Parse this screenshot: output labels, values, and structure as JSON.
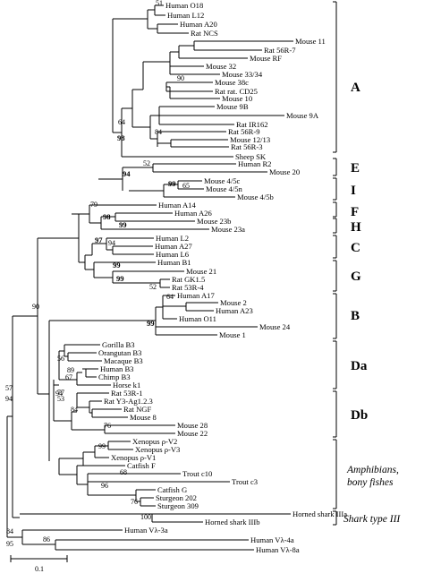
{
  "taxa": [
    {
      "key": "h_o18",
      "label": "Human O18"
    },
    {
      "key": "h_l12",
      "label": "Human L12"
    },
    {
      "key": "h_a20",
      "label": "Human A20"
    },
    {
      "key": "rat_ncs",
      "label": "Rat NCS"
    },
    {
      "key": "m_11",
      "label": "Mouse 11"
    },
    {
      "key": "rat_56r7",
      "label": "Rat 56R-7"
    },
    {
      "key": "m_rf",
      "label": "Mouse RF"
    },
    {
      "key": "m_32",
      "label": "Mouse 32"
    },
    {
      "key": "m_3334",
      "label": "Mouse 33/34"
    },
    {
      "key": "m_38c",
      "label": "Mouse 38c"
    },
    {
      "key": "rat_cd25",
      "label": "Rat rat. CD25"
    },
    {
      "key": "m_10",
      "label": "Mouse 10"
    },
    {
      "key": "m_9b",
      "label": "Mouse 9B"
    },
    {
      "key": "m_9a",
      "label": "Mouse 9A"
    },
    {
      "key": "rat_ir162",
      "label": "Rat IR162"
    },
    {
      "key": "rat_56r9",
      "label": "Rat 56R-9"
    },
    {
      "key": "m_1213",
      "label": "Mouse 12/13"
    },
    {
      "key": "rat_56r3",
      "label": "Rat 56R-3"
    },
    {
      "key": "sheep_sk",
      "label": "Sheep SK"
    },
    {
      "key": "h_r2",
      "label": "Human R2"
    },
    {
      "key": "m_20",
      "label": "Mouse 20"
    },
    {
      "key": "m_45c",
      "label": "Mouse 4/5c"
    },
    {
      "key": "m_45n",
      "label": "Mouse 4/5n"
    },
    {
      "key": "m_45b",
      "label": "Mouse 4/5b"
    },
    {
      "key": "h_a14",
      "label": "Human A14"
    },
    {
      "key": "h_a26",
      "label": "Human A26"
    },
    {
      "key": "m_23b",
      "label": "Mouse 23b"
    },
    {
      "key": "m_23a",
      "label": "Mouse 23a"
    },
    {
      "key": "h_l2",
      "label": "Human L2"
    },
    {
      "key": "h_a27",
      "label": "Human A27"
    },
    {
      "key": "h_l6",
      "label": "Human L6"
    },
    {
      "key": "h_b1",
      "label": "Human B1"
    },
    {
      "key": "m_21",
      "label": "Mouse 21"
    },
    {
      "key": "rat_gk15",
      "label": "Rat GK1.5"
    },
    {
      "key": "rat_53r4",
      "label": "Rat 53R-4"
    },
    {
      "key": "h_a17",
      "label": "Human A17"
    },
    {
      "key": "m_2",
      "label": "Mouse 2"
    },
    {
      "key": "h_a23",
      "label": "Human A23"
    },
    {
      "key": "h_o11",
      "label": "Human O11"
    },
    {
      "key": "m_24",
      "label": "Mouse 24"
    },
    {
      "key": "m_1",
      "label": "Mouse 1"
    },
    {
      "key": "gor_b3",
      "label": "Gorilla B3"
    },
    {
      "key": "ora_b3",
      "label": "Orangutan B3"
    },
    {
      "key": "mac_b3",
      "label": "Macaque B3"
    },
    {
      "key": "h_b3",
      "label": "Human B3"
    },
    {
      "key": "chimp_b3",
      "label": "Chimp B3"
    },
    {
      "key": "horse_k1",
      "label": "Horse k1"
    },
    {
      "key": "rat_53r1",
      "label": "Rat 53R-1"
    },
    {
      "key": "rat_y3",
      "label": "Rat Y3-Ag1.2.3"
    },
    {
      "key": "rat_ngf",
      "label": "Rat NGF"
    },
    {
      "key": "m_8",
      "label": "Mouse 8"
    },
    {
      "key": "m_28",
      "label": "Mouse 28"
    },
    {
      "key": "m_22",
      "label": "Mouse 22"
    },
    {
      "key": "xen_v2",
      "label": "Xenopus ρ-V2"
    },
    {
      "key": "xen_v3",
      "label": "Xenopus ρ-V3"
    },
    {
      "key": "xen_v1",
      "label": "Xenopus ρ-V1"
    },
    {
      "key": "cat_f",
      "label": "Catfish F"
    },
    {
      "key": "trout_c10",
      "label": "Trout c10"
    },
    {
      "key": "trout_c3",
      "label": "Trout c3"
    },
    {
      "key": "cat_g",
      "label": "Catfish G"
    },
    {
      "key": "stur_202",
      "label": "Sturgeon 202"
    },
    {
      "key": "stur_309",
      "label": "Sturgeon 309"
    },
    {
      "key": "shark_3a",
      "label": "Horned shark IIIa"
    },
    {
      "key": "shark_3b",
      "label": "Horned shark IIIb"
    },
    {
      "key": "hvl3a",
      "label": "Human Vλ-3a"
    },
    {
      "key": "hvl4a",
      "label": "Human Vλ-4a"
    },
    {
      "key": "hvl8a",
      "label": "Human Vλ-8a"
    }
  ],
  "bootstrap": [
    {
      "key": "b51",
      "value": "51"
    },
    {
      "key": "b90a",
      "value": "90"
    },
    {
      "key": "b64a",
      "value": "64"
    },
    {
      "key": "b98a",
      "value": "98",
      "bold": true
    },
    {
      "key": "b84a",
      "value": "84"
    },
    {
      "key": "b52a",
      "value": "52"
    },
    {
      "key": "b94a",
      "value": "94",
      "bold": true
    },
    {
      "key": "b99a",
      "value": "99",
      "bold": true
    },
    {
      "key": "b65",
      "value": "65"
    },
    {
      "key": "b79",
      "value": "79"
    },
    {
      "key": "b98b",
      "value": "98",
      "bold": true
    },
    {
      "key": "b99b",
      "value": "99",
      "bold": true
    },
    {
      "key": "b97",
      "value": "97",
      "bold": true
    },
    {
      "key": "b94b",
      "value": "94"
    },
    {
      "key": "b99c",
      "value": "99",
      "bold": true
    },
    {
      "key": "b99d",
      "value": "99",
      "bold": true
    },
    {
      "key": "b52b",
      "value": "52"
    },
    {
      "key": "b64b",
      "value": "64"
    },
    {
      "key": "b99e",
      "value": "99",
      "bold": true
    },
    {
      "key": "b90b",
      "value": "90"
    },
    {
      "key": "b56",
      "value": "56"
    },
    {
      "key": "b89",
      "value": "89"
    },
    {
      "key": "b67",
      "value": "67"
    },
    {
      "key": "b77",
      "value": "77"
    },
    {
      "key": "b57",
      "value": "57"
    },
    {
      "key": "b94c",
      "value": "94"
    },
    {
      "key": "b94d",
      "value": "94"
    },
    {
      "key": "b53",
      "value": "53"
    },
    {
      "key": "b84b",
      "value": "84"
    },
    {
      "key": "b76a",
      "value": "76"
    },
    {
      "key": "b99f",
      "value": "99"
    },
    {
      "key": "b68",
      "value": "68"
    },
    {
      "key": "b96",
      "value": "96"
    },
    {
      "key": "b76b",
      "value": "76"
    },
    {
      "key": "b100",
      "value": "100"
    },
    {
      "key": "b84c",
      "value": "84"
    },
    {
      "key": "b95",
      "value": "95"
    },
    {
      "key": "b86",
      "value": "86"
    }
  ],
  "groups": [
    {
      "key": "A",
      "label": "A"
    },
    {
      "key": "E",
      "label": "E"
    },
    {
      "key": "I",
      "label": "I"
    },
    {
      "key": "F",
      "label": "F"
    },
    {
      "key": "H",
      "label": "H"
    },
    {
      "key": "C",
      "label": "C"
    },
    {
      "key": "G",
      "label": "G"
    },
    {
      "key": "B",
      "label": "B"
    },
    {
      "key": "Da",
      "label": "Da"
    },
    {
      "key": "Db",
      "label": "Db"
    },
    {
      "key": "AB1",
      "label": "Amphibians,"
    },
    {
      "key": "AB2",
      "label": "bony fishes"
    },
    {
      "key": "S3",
      "label": "Shark type III"
    }
  ],
  "scale_bar": {
    "label": "0.1"
  }
}
